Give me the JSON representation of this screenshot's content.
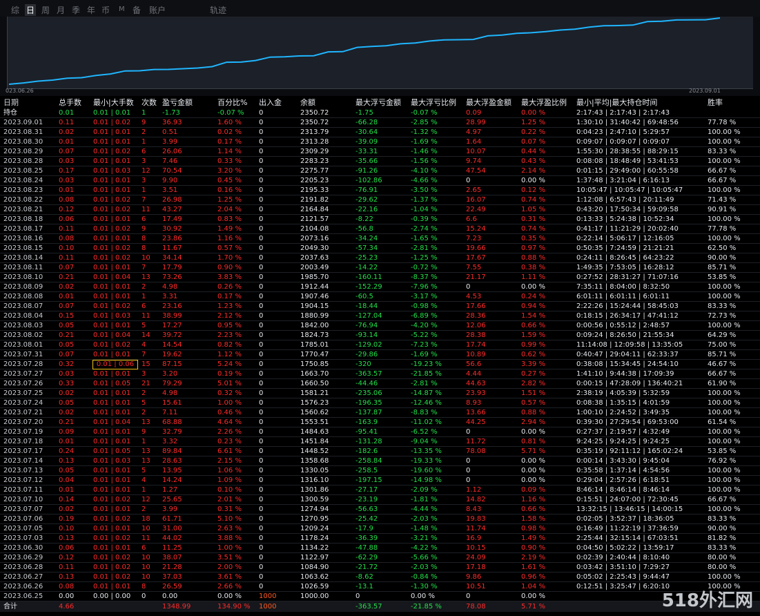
{
  "tabs": [
    "综",
    "日",
    "周",
    "月",
    "季",
    "年",
    "币",
    "M",
    "备",
    "账户",
    "轨迹"
  ],
  "active_tab": "日",
  "chart": {
    "x_start": "023.06.26",
    "x_end": "2023.09.01",
    "line_color": "#1fb6ff",
    "balances": [
      1000.0,
      1026.59,
      1063.62,
      1084.9,
      1122.97,
      1134.22,
      1178.24,
      1209.24,
      1270.95,
      1274.94,
      1300.59,
      1301.86,
      1316.1,
      1330.05,
      1358.68,
      1448.52,
      1451.84,
      1484.63,
      1553.51,
      1560.62,
      1576.23,
      1581.21,
      1660.5,
      1663.7,
      1750.85,
      1770.47,
      1785.01,
      1824.73,
      1842.0,
      1880.99,
      1904.15,
      1907.46,
      1912.44,
      1985.7,
      2003.49,
      2037.63,
      2049.3,
      2073.16,
      2104.08,
      2121.57,
      2164.84,
      2191.82,
      2195.33,
      2205.23,
      2275.77,
      2283.23,
      2309.29,
      2313.28,
      2313.79,
      2350.72
    ]
  },
  "headers": [
    "日期",
    "总手数",
    "最小|大手数",
    "次数",
    "盈亏金额",
    "百分比%",
    "出入金",
    "余额",
    "最大浮亏金额",
    "最大浮亏比例",
    "最大浮盈金额",
    "最大浮盈比例",
    "最小|平均|最大持仓时间",
    "胜率"
  ],
  "holding": [
    "持仓",
    "0.01",
    "0.01 | 0.01",
    "1",
    "-1.73",
    "-0.07 %",
    "0",
    "2350.72",
    "-1.75",
    "-0.07 %",
    "0.09",
    "0.00 %",
    "2:17:43 | 2:17:43 | 2:17:43",
    ""
  ],
  "rows": [
    [
      "2023.09.01",
      "0.11",
      "0.01 | 0.02",
      "9",
      "36.93",
      "1.60 %",
      "0",
      "2350.72",
      "-66.28",
      "-2.85 %",
      "28.99",
      "1.25 %",
      "1:30:10 | 31:40:42 | 69:48:56",
      "77.78 %"
    ],
    [
      "2023.08.31",
      "0.02",
      "0.01 | 0.01",
      "2",
      "0.51",
      "0.02 %",
      "0",
      "2313.79",
      "-30.64",
      "-1.32 %",
      "4.97",
      "0.22 %",
      "0:04:23 | 2:47:10 | 5:29:57",
      "100.00 %"
    ],
    [
      "2023.08.30",
      "0.01",
      "0.01 | 0.01",
      "1",
      "3.99",
      "0.17 %",
      "0",
      "2313.28",
      "-39.09",
      "-1.69 %",
      "1.64",
      "0.07 %",
      "0:09:07 | 0:09:07 | 0:09:07",
      "100.00 %"
    ],
    [
      "2023.08.29",
      "0.07",
      "0.01 | 0.02",
      "6",
      "26.06",
      "1.14 %",
      "0",
      "2309.29",
      "-33.31",
      "-1.46 %",
      "10.07",
      "0.44 %",
      "1:55:30 | 28:38:55 | 88:29:15",
      "83.33 %"
    ],
    [
      "2023.08.28",
      "0.03",
      "0.01 | 0.01",
      "3",
      "7.46",
      "0.33 %",
      "0",
      "2283.23",
      "-35.66",
      "-1.56 %",
      "9.74",
      "0.43 %",
      "0:08:08 | 18:48:49 | 53:41:53",
      "100.00 %"
    ],
    [
      "2023.08.25",
      "0.17",
      "0.01 | 0.03",
      "12",
      "70.54",
      "3.20 %",
      "0",
      "2275.77",
      "-91.26",
      "-4.10 %",
      "47.54",
      "2.14 %",
      "0:01:15 | 29:49:00 | 60:55:58",
      "66.67 %"
    ],
    [
      "2023.08.24",
      "0.03",
      "0.01 | 0.01",
      "3",
      "9.90",
      "0.45 %",
      "0",
      "2205.23",
      "-102.86",
      "-4.66 %",
      "0",
      "0.00 %",
      "1:37:48 | 3:21:04 | 6:16:13",
      "66.67 %"
    ],
    [
      "2023.08.23",
      "0.01",
      "0.01 | 0.01",
      "1",
      "3.51",
      "0.16 %",
      "0",
      "2195.33",
      "-76.91",
      "-3.50 %",
      "2.65",
      "0.12 %",
      "10:05:47 | 10:05:47 | 10:05:47",
      "100.00 %"
    ],
    [
      "2023.08.22",
      "0.08",
      "0.01 | 0.02",
      "7",
      "26.98",
      "1.25 %",
      "0",
      "2191.82",
      "-29.62",
      "-1.37 %",
      "16.07",
      "0.74 %",
      "1:12:08 | 6:57:43 | 20:11:49",
      "71.43 %"
    ],
    [
      "2023.08.21",
      "0.12",
      "0.01 | 0.02",
      "11",
      "43.27",
      "2.04 %",
      "0",
      "2164.84",
      "-22.16",
      "-1.04 %",
      "22.49",
      "1.05 %",
      "0:43:20 | 17:50:34 | 59:09:58",
      "90.91 %"
    ],
    [
      "2023.08.18",
      "0.06",
      "0.01 | 0.01",
      "6",
      "17.49",
      "0.83 %",
      "0",
      "2121.57",
      "-8.22",
      "-0.39 %",
      "6.6",
      "0.31 %",
      "0:13:33 | 5:24:38 | 10:52:34",
      "100.00 %"
    ],
    [
      "2023.08.17",
      "0.11",
      "0.01 | 0.02",
      "9",
      "30.92",
      "1.49 %",
      "0",
      "2104.08",
      "-56.8",
      "-2.74 %",
      "15.24",
      "0.74 %",
      "0:41:17 | 11:21:29 | 20:02:40",
      "77.78 %"
    ],
    [
      "2023.08.16",
      "0.08",
      "0.01 | 0.01",
      "8",
      "23.86",
      "1.16 %",
      "0",
      "2073.16",
      "-34.24",
      "-1.65 %",
      "7.23",
      "0.35 %",
      "0:22:14 | 5:06:17 | 12:16:05",
      "100.00 %"
    ],
    [
      "2023.08.15",
      "0.10",
      "0.01 | 0.02",
      "8",
      "11.67",
      "0.57 %",
      "0",
      "2049.30",
      "-57.34",
      "-2.81 %",
      "19.66",
      "0.97 %",
      "0:50:35 | 7:24:59 | 21:21:21",
      "62.50 %"
    ],
    [
      "2023.08.14",
      "0.11",
      "0.01 | 0.02",
      "10",
      "34.14",
      "1.70 %",
      "0",
      "2037.63",
      "-25.23",
      "-1.25 %",
      "17.67",
      "0.88 %",
      "0:24:11 | 8:26:45 | 64:23:22",
      "90.00 %"
    ],
    [
      "2023.08.11",
      "0.07",
      "0.01 | 0.01",
      "7",
      "17.79",
      "0.90 %",
      "0",
      "2003.49",
      "-14.22",
      "-0.72 %",
      "7.55",
      "0.38 %",
      "1:49:35 | 7:53:05 | 16:28:12",
      "85.71 %"
    ],
    [
      "2023.08.10",
      "0.21",
      "0.01 | 0.04",
      "13",
      "73.26",
      "3.83 %",
      "0",
      "1985.70",
      "-160.11",
      "-8.37 %",
      "21.17",
      "1.11 %",
      "0:27:52 | 28:31:27 | 71:07:16",
      "53.85 %"
    ],
    [
      "2023.08.09",
      "0.02",
      "0.01 | 0.01",
      "2",
      "4.98",
      "0.26 %",
      "0",
      "1912.44",
      "-152.29",
      "-7.96 %",
      "0",
      "0.00 %",
      "7:35:11 | 8:04:00 | 8:32:50",
      "100.00 %"
    ],
    [
      "2023.08.08",
      "0.01",
      "0.01 | 0.01",
      "1",
      "3.31",
      "0.17 %",
      "0",
      "1907.46",
      "-60.5",
      "-3.17 %",
      "4.53",
      "0.24 %",
      "6:01:11 | 6:01:11 | 6:01:11",
      "100.00 %"
    ],
    [
      "2023.08.07",
      "0.07",
      "0.01 | 0.02",
      "6",
      "23.16",
      "1.23 %",
      "0",
      "1904.15",
      "-18.44",
      "-0.98 %",
      "17.66",
      "0.94 %",
      "2:22:26 | 15:24:44 | 58:45:03",
      "83.33 %"
    ],
    [
      "2023.08.04",
      "0.15",
      "0.01 | 0.03",
      "11",
      "38.99",
      "2.12 %",
      "0",
      "1880.99",
      "-127.04",
      "-6.89 %",
      "28.36",
      "1.54 %",
      "0:18:15 | 26:34:17 | 47:41:12",
      "72.73 %"
    ],
    [
      "2023.08.03",
      "0.05",
      "0.01 | 0.01",
      "5",
      "17.27",
      "0.95 %",
      "0",
      "1842.00",
      "-76.94",
      "-4.20 %",
      "12.06",
      "0.66 %",
      "0:00:56 | 0:55:12 | 2:48:57",
      "100.00 %"
    ],
    [
      "2023.08.02",
      "0.21",
      "0.01 | 0.04",
      "14",
      "39.72",
      "2.23 %",
      "0",
      "1824.73",
      "-93.14",
      "-5.22 %",
      "28.38",
      "1.59 %",
      "0:09:24 | 8:26:50 | 21:55:34",
      "64.29 %"
    ],
    [
      "2023.08.01",
      "0.05",
      "0.01 | 0.02",
      "4",
      "14.54",
      "0.82 %",
      "0",
      "1785.01",
      "-129.02",
      "-7.23 %",
      "17.74",
      "0.99 %",
      "11:14:08 | 12:09:58 | 13:35:05",
      "75.00 %"
    ],
    [
      "2023.07.31",
      "0.07",
      "0.01 | 0.01",
      "7",
      "19.62",
      "1.12 %",
      "0",
      "1770.47",
      "-29.86",
      "-1.69 %",
      "10.89",
      "0.62 %",
      "0:40:47 | 29:04:11 | 62:33:37",
      "85.71 %"
    ],
    [
      "2023.07.28",
      "0.32",
      "0.01 | 0.06",
      "15",
      "87.15",
      "5.24 %",
      "0",
      "1750.85",
      "-320",
      "-19.23 %",
      "56.6",
      "3.39 %",
      "0:38:08 | 15:34:45 | 24:54:10",
      "46.67 %"
    ],
    [
      "2023.07.27",
      "0.03",
      "0.01 | 0.01",
      "3",
      "3.20",
      "0.19 %",
      "0",
      "1663.70",
      "-363.57",
      "-21.85 %",
      "4.44",
      "0.27 %",
      "1:41:10 | 9:44:38 | 17:09:39",
      "66.67 %"
    ],
    [
      "2023.07.26",
      "0.33",
      "0.01 | 0.05",
      "21",
      "79.29",
      "5.01 %",
      "0",
      "1660.50",
      "-44.46",
      "-2.81 %",
      "44.63",
      "2.82 %",
      "0:00:15 | 47:28:09 | 136:40:21",
      "61.90 %"
    ],
    [
      "2023.07.25",
      "0.02",
      "0.01 | 0.01",
      "2",
      "4.98",
      "0.32 %",
      "0",
      "1581.21",
      "-235.06",
      "-14.87 %",
      "23.93",
      "1.51 %",
      "2:38:19 | 4:05:39 | 5:32:59",
      "100.00 %"
    ],
    [
      "2023.07.24",
      "0.05",
      "0.01 | 0.01",
      "5",
      "15.61",
      "1.00 %",
      "0",
      "1576.23",
      "-196.35",
      "-12.46 %",
      "8.93",
      "0.57 %",
      "0:08:38 | 1:35:15 | 4:01:59",
      "100.00 %"
    ],
    [
      "2023.07.21",
      "0.02",
      "0.01 | 0.01",
      "2",
      "7.11",
      "0.46 %",
      "0",
      "1560.62",
      "-137.87",
      "-8.83 %",
      "13.66",
      "0.88 %",
      "1:00:10 | 2:24:52 | 3:49:35",
      "100.00 %"
    ],
    [
      "2023.07.20",
      "0.21",
      "0.01 | 0.04",
      "13",
      "68.88",
      "4.64 %",
      "0",
      "1553.51",
      "-163.9",
      "-11.02 %",
      "44.25",
      "2.94 %",
      "0:39:30 | 27:29:54 | 69:53:00",
      "61.54 %"
    ],
    [
      "2023.07.19",
      "0.09",
      "0.01 | 0.01",
      "9",
      "32.79",
      "2.26 %",
      "0",
      "1484.63",
      "-95.41",
      "-6.52 %",
      "0",
      "0.00 %",
      "0:27:37 | 2:19:57 | 4:32:49",
      "100.00 %"
    ],
    [
      "2023.07.18",
      "0.01",
      "0.01 | 0.01",
      "1",
      "3.32",
      "0.23 %",
      "0",
      "1451.84",
      "-131.28",
      "-9.04 %",
      "11.72",
      "0.81 %",
      "9:24:25 | 9:24:25 | 9:24:25",
      "100.00 %"
    ],
    [
      "2023.07.17",
      "0.24",
      "0.01 | 0.05",
      "13",
      "89.84",
      "6.61 %",
      "0",
      "1448.52",
      "-182.6",
      "-13.35 %",
      "78.08",
      "5.71 %",
      "0:35:19 | 92:11:12 | 165:02:24",
      "53.85 %"
    ],
    [
      "2023.07.14",
      "0.13",
      "0.01 | 0.03",
      "13",
      "28.63",
      "2.15 %",
      "0",
      "1358.68",
      "-258.84",
      "-19.33 %",
      "0",
      "0.00 %",
      "0:00:14 | 3:43:30 | 9:45:04",
      "76.92 %"
    ],
    [
      "2023.07.13",
      "0.05",
      "0.01 | 0.01",
      "5",
      "13.95",
      "1.06 %",
      "0",
      "1330.05",
      "-258.5",
      "-19.60 %",
      "0",
      "0.00 %",
      "0:35:58 | 1:37:14 | 4:54:56",
      "100.00 %"
    ],
    [
      "2023.07.12",
      "0.04",
      "0.01 | 0.01",
      "4",
      "14.24",
      "1.09 %",
      "0",
      "1316.10",
      "-197.15",
      "-14.98 %",
      "0",
      "0.00 %",
      "0:29:04 | 2:57:26 | 6:18:51",
      "100.00 %"
    ],
    [
      "2023.07.11",
      "0.01",
      "0.01 | 0.01",
      "1",
      "1.27",
      "0.10 %",
      "0",
      "1301.86",
      "-27.17",
      "-2.09 %",
      "1.12",
      "0.09 %",
      "8:46:14 | 8:46:14 | 8:46:14",
      "100.00 %"
    ],
    [
      "2023.07.10",
      "0.14",
      "0.01 | 0.02",
      "12",
      "25.65",
      "2.01 %",
      "0",
      "1300.59",
      "-23.19",
      "-1.81 %",
      "14.82",
      "1.16 %",
      "0:15:51 | 24:07:00 | 72:30:45",
      "66.67 %"
    ],
    [
      "2023.07.07",
      "0.02",
      "0.01 | 0.01",
      "2",
      "3.99",
      "0.31 %",
      "0",
      "1274.94",
      "-56.63",
      "-4.44 %",
      "8.43",
      "0.66 %",
      "13:32:15 | 13:46:15 | 14:00:15",
      "100.00 %"
    ],
    [
      "2023.07.06",
      "0.19",
      "0.01 | 0.02",
      "18",
      "61.71",
      "5.10 %",
      "0",
      "1270.95",
      "-25.42",
      "-2.03 %",
      "19.83",
      "1.58 %",
      "0:02:05 | 3:52:37 | 18:36:05",
      "83.33 %"
    ],
    [
      "2023.07.05",
      "0.10",
      "0.01 | 0.01",
      "10",
      "31.00",
      "2.63 %",
      "0",
      "1209.24",
      "-17.9",
      "-1.48 %",
      "11.74",
      "0.98 %",
      "0:16:49 | 11:22:19 | 37:36:59",
      "90.00 %"
    ],
    [
      "2023.07.03",
      "0.13",
      "0.01 | 0.02",
      "11",
      "44.02",
      "3.88 %",
      "0",
      "1178.24",
      "-36.39",
      "-3.21 %",
      "16.9",
      "1.49 %",
      "2:25:44 | 32:15:14 | 67:03:51",
      "81.82 %"
    ],
    [
      "2023.06.30",
      "0.06",
      "0.01 | 0.01",
      "6",
      "11.25",
      "1.00 %",
      "0",
      "1134.22",
      "-47.88",
      "-4.22 %",
      "10.15",
      "0.90 %",
      "0:04:50 | 5:02:22 | 13:59:17",
      "83.33 %"
    ],
    [
      "2023.06.29",
      "0.12",
      "0.01 | 0.02",
      "10",
      "38.07",
      "3.51 %",
      "0",
      "1122.97",
      "-62.29",
      "-5.66 %",
      "24.09",
      "2.19 %",
      "0:02:39 | 2:40:44 | 8:10:40",
      "80.00 %"
    ],
    [
      "2023.06.28",
      "0.11",
      "0.01 | 0.02",
      "10",
      "21.28",
      "2.00 %",
      "0",
      "1084.90",
      "-21.72",
      "-2.03 %",
      "17.18",
      "1.61 %",
      "0:03:42 | 3:51:10 | 7:29:27",
      "80.00 %"
    ],
    [
      "2023.06.27",
      "0.13",
      "0.01 | 0.02",
      "10",
      "37.03",
      "3.61 %",
      "0",
      "1063.62",
      "-8.62",
      "-0.84 %",
      "9.86",
      "0.96 %",
      "0:05:02 | 2:25:43 | 9:44:47",
      "100.00 %"
    ],
    [
      "2023.06.26",
      "0.08",
      "0.01 | 0.01",
      "8",
      "26.59",
      "2.66 %",
      "0",
      "1026.59",
      "-13.1",
      "-1.30 %",
      "10.51",
      "1.04 %",
      "0:12:51 | 3:25:47 | 6:20:10",
      "100.00 %"
    ],
    [
      "2023.06.25",
      "0.00",
      "0.00 | 0.00",
      "0",
      "0.00",
      "0.00 %",
      "1000",
      "1000.00",
      "0",
      "0.00 %",
      "0",
      "0.00 %",
      "",
      ""
    ]
  ],
  "total": [
    "合计",
    "4.66",
    "",
    "",
    "1348.99",
    "134.90 %",
    "1000",
    "",
    "-363.57",
    "-21.85 %",
    "78.08",
    "5.71 %",
    "",
    ""
  ],
  "watermark": "518外汇网"
}
